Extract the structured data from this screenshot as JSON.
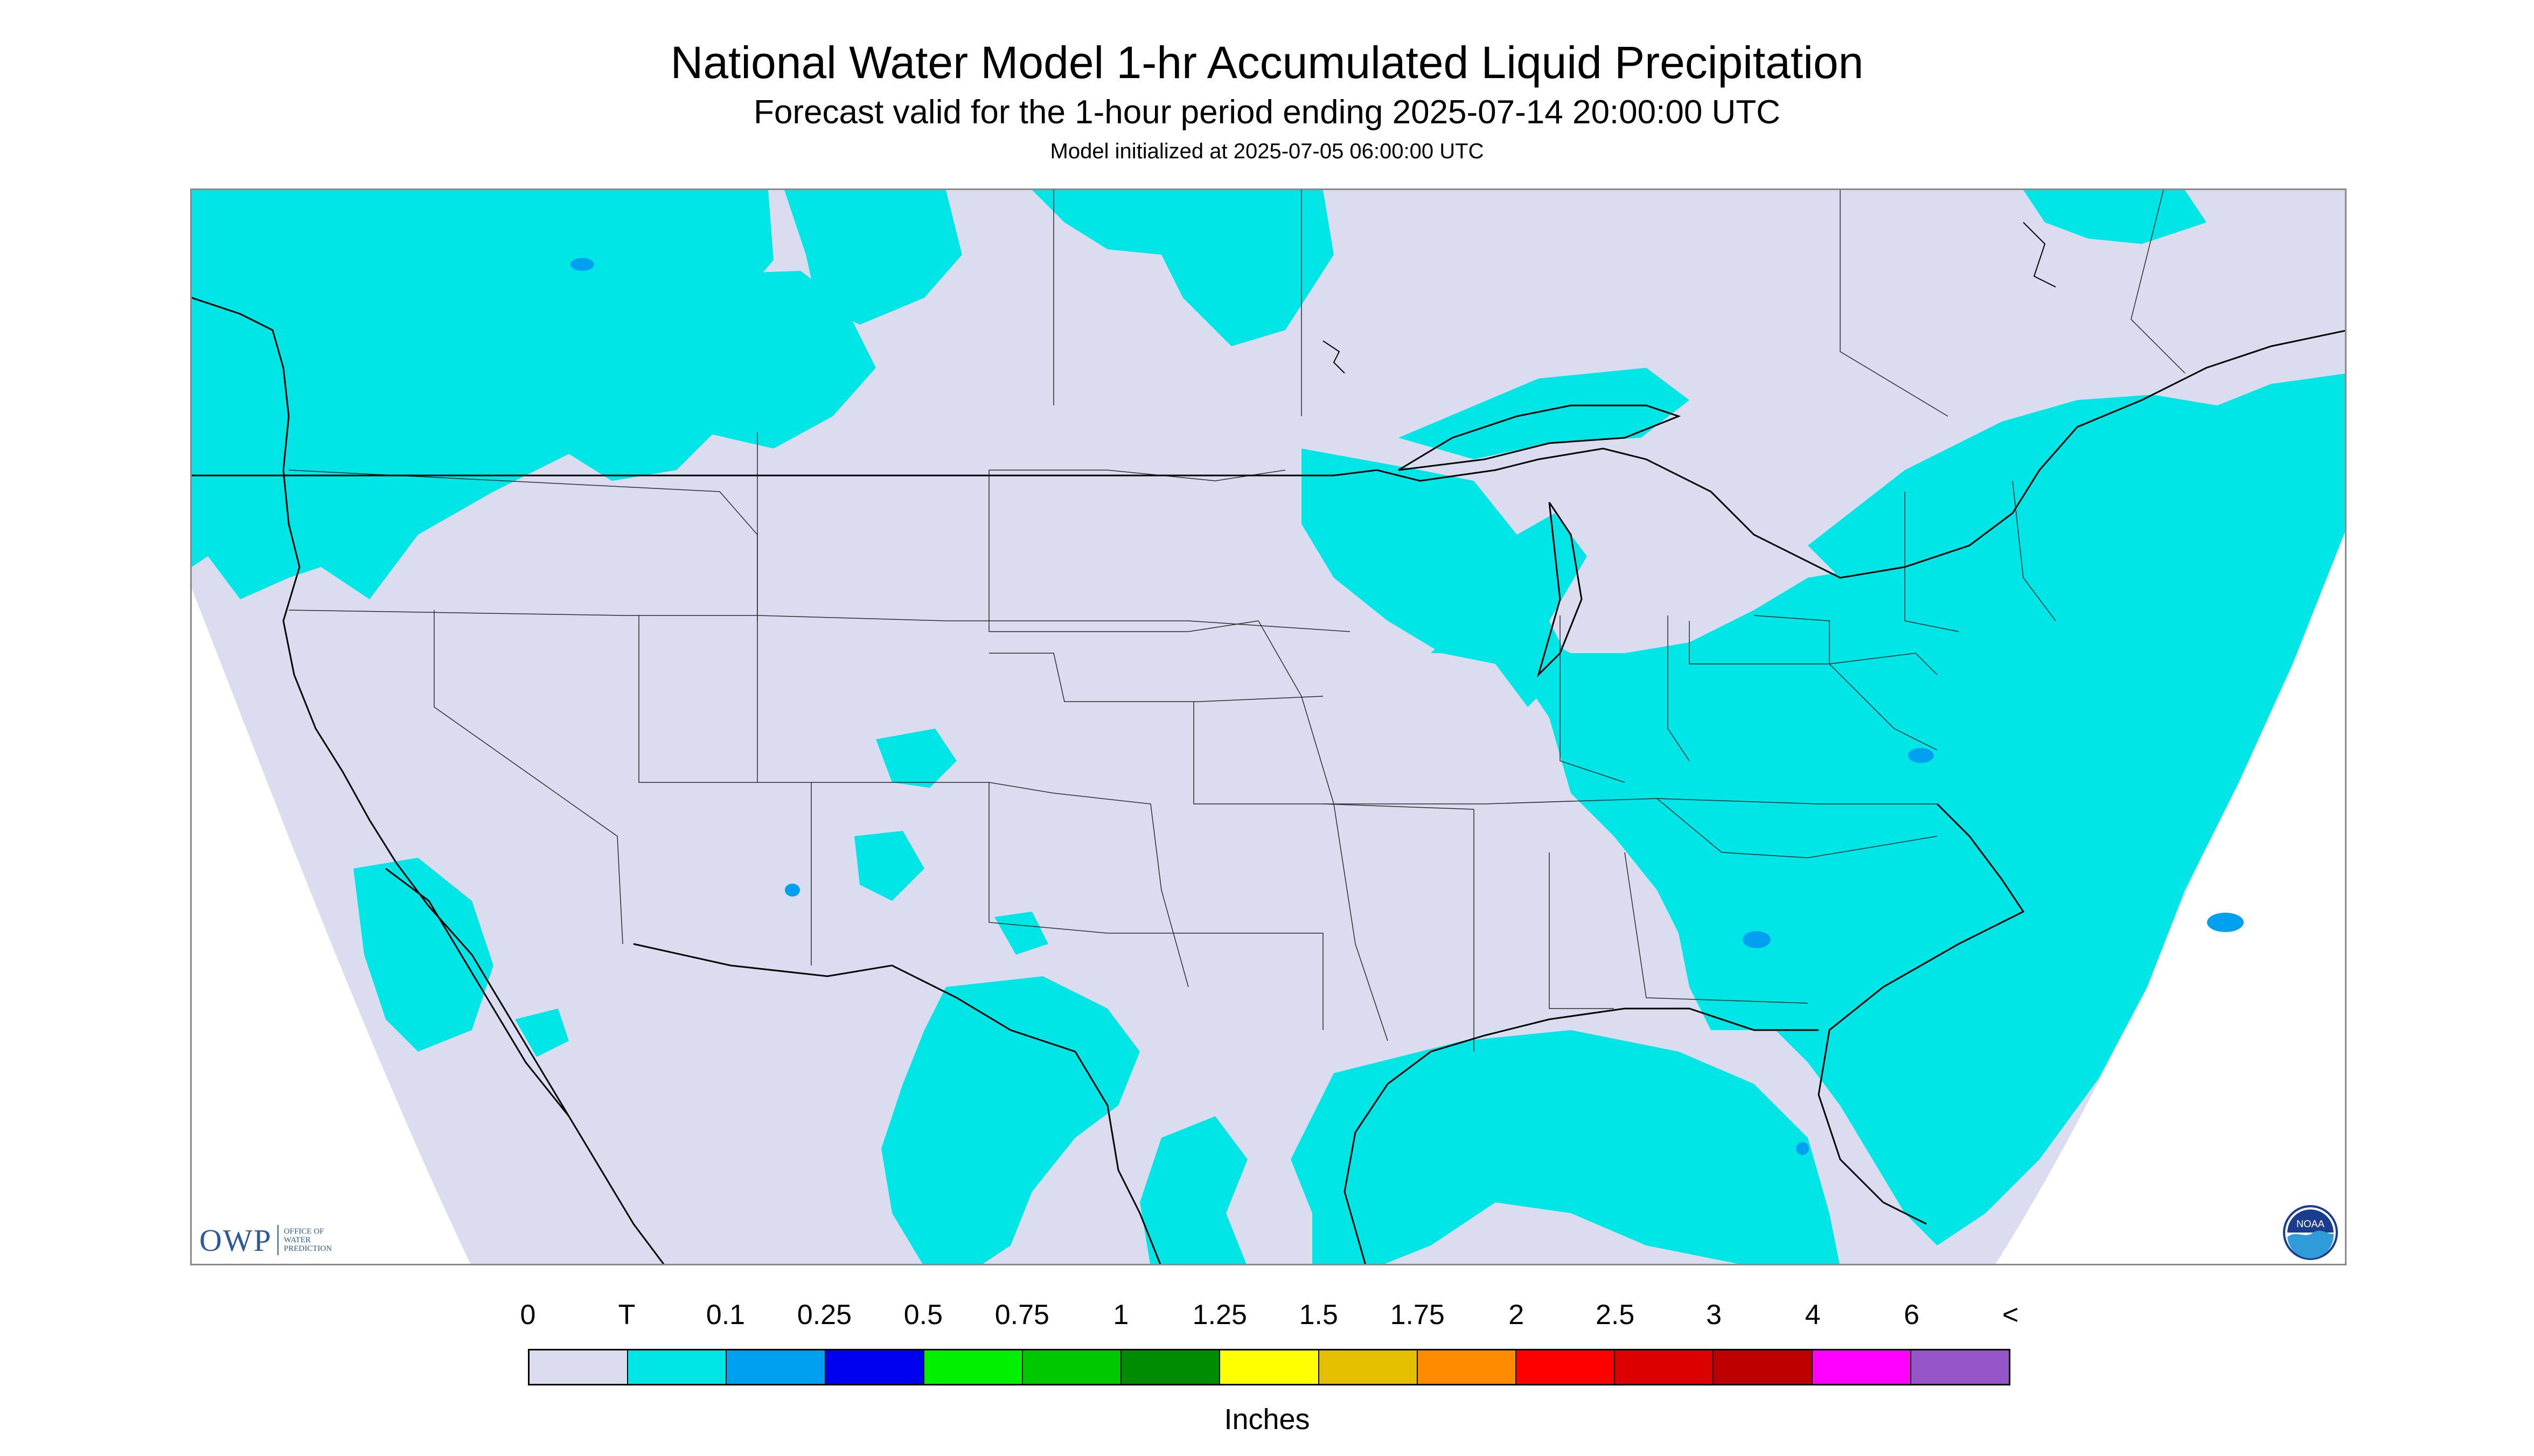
{
  "title": "National Water Model 1-hr Accumulated Liquid Precipitation",
  "subtitle": "Forecast valid for the 1-hour period ending 2025-07-14 20:00:00 UTC",
  "init_line": "Model initialized at 2025-07-05 06:00:00 UTC",
  "logos": {
    "owp_text": "OWP",
    "owp_small": "OFFICE OF WATER PREDICTION",
    "noaa_text": "NOAA"
  },
  "colors": {
    "zero": "#dcdcf0",
    "trace": "#00e6e6",
    "coastline": "#000000",
    "border": "#000000"
  },
  "legend": {
    "labels": [
      "0",
      "T",
      "0.1",
      "0.25",
      "0.5",
      "0.75",
      "1",
      "1.25",
      "1.5",
      "1.75",
      "2",
      "2.5",
      "3",
      "4",
      "6",
      "<"
    ],
    "colors": [
      "#dcdcf0",
      "#00e6e6",
      "#00a0f0",
      "#0000f0",
      "#00f000",
      "#00c800",
      "#008c00",
      "#ffff00",
      "#e6be00",
      "#ff8c00",
      "#ff0000",
      "#dc0000",
      "#be0000",
      "#ff00ff",
      "#9655c8"
    ],
    "units": "Inches"
  }
}
